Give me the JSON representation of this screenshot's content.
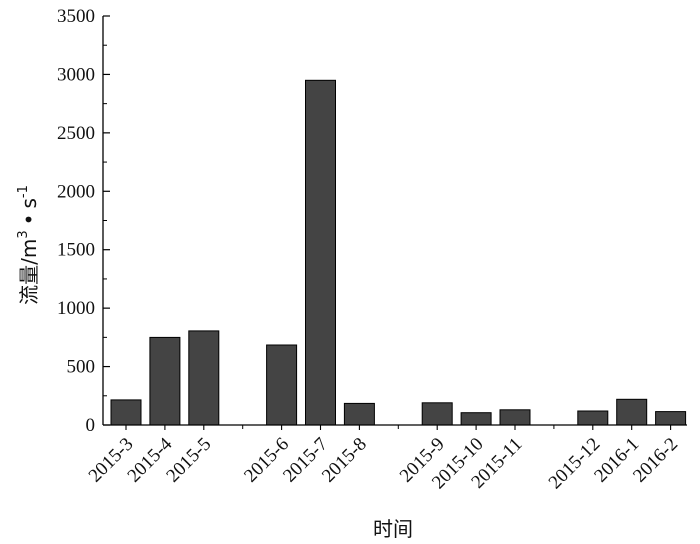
{
  "chart_data": {
    "type": "bar",
    "xlabel": "时间",
    "ylabel": "流量/m³·s⁻¹",
    "ylim": [
      0,
      3500
    ],
    "yticks": [
      0,
      500,
      1000,
      1500,
      2000,
      2500,
      3000,
      3500
    ],
    "categories": [
      "2015-3",
      "2015-4",
      "2015-5",
      "2015-6",
      "2015-7",
      "2015-8",
      "2015-9",
      "2015-10",
      "2015-11",
      "2015-12",
      "2016-1",
      "2016-2"
    ],
    "values": [
      215,
      750,
      805,
      685,
      2950,
      185,
      190,
      105,
      130,
      120,
      220,
      115
    ],
    "bar_color": "#444444",
    "grid": false
  },
  "ylabel_parts": {
    "main": "流量/m",
    "sup1": "3",
    "dot": "•",
    "s": "s",
    "sup2": "-1"
  }
}
